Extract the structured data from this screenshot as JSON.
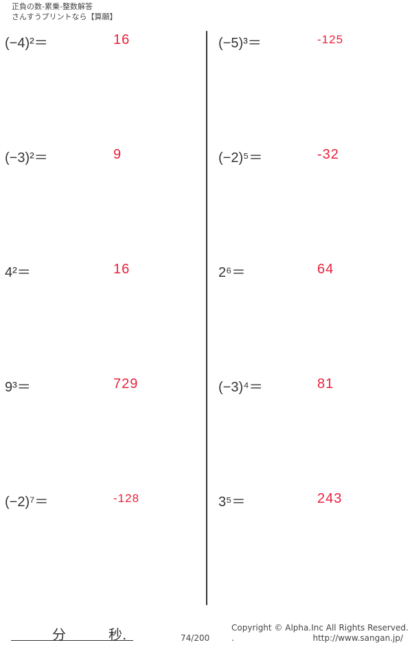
{
  "header": {
    "line1": "正負の数-累乗-整数解答",
    "line2": "さんすうプリントなら【算願】"
  },
  "problems": {
    "left": [
      {
        "question": "(−4)²＝",
        "answer": "16"
      },
      {
        "question": "(−3)²＝",
        "answer": "9"
      },
      {
        "question": "4²＝",
        "answer": "16"
      },
      {
        "question": "9³＝",
        "answer": "729"
      },
      {
        "question": "(−2)⁷＝",
        "answer": "-128"
      }
    ],
    "right": [
      {
        "question": "(−5)³＝",
        "answer": "-125"
      },
      {
        "question": "(−2)⁵＝",
        "answer": "-32"
      },
      {
        "question": "2⁶＝",
        "answer": "64"
      },
      {
        "question": "(−3)⁴＝",
        "answer": "81"
      },
      {
        "question": "3⁵＝",
        "answer": "243"
      }
    ]
  },
  "footer": {
    "minutes": "分",
    "seconds": "秒.",
    "page": "74/200",
    "copyright": "Copyright ©  Alpha.Inc All Rights Reserved.",
    "dot": ".",
    "url": "http://www.sangan.jp/"
  },
  "colors": {
    "answer": "#e8203c"
  }
}
